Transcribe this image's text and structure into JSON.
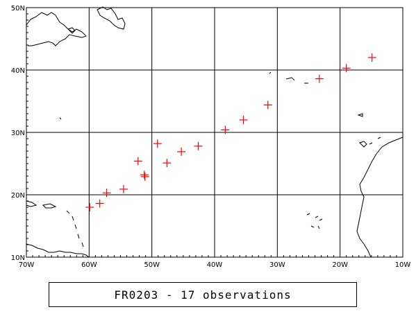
{
  "map": {
    "lon_range": [
      -70,
      -10
    ],
    "lat_range": [
      10,
      50
    ],
    "lon_ticks": [
      {
        "value": -70,
        "label": "70W"
      },
      {
        "value": -60,
        "label": "60W"
      },
      {
        "value": -50,
        "label": "50W"
      },
      {
        "value": -40,
        "label": "40W"
      },
      {
        "value": -30,
        "label": "30W"
      },
      {
        "value": -20,
        "label": "20W"
      },
      {
        "value": -10,
        "label": "10W"
      }
    ],
    "lat_ticks": [
      {
        "value": 10,
        "label": "10N"
      },
      {
        "value": 20,
        "label": "20N"
      },
      {
        "value": 30,
        "label": "30N"
      },
      {
        "value": 40,
        "label": "40N"
      },
      {
        "value": 50,
        "label": "50N"
      }
    ],
    "grid": true,
    "marker_color": "#ff0000",
    "coast_color": "#000000",
    "observations": [
      {
        "lon": -59.9,
        "lat": 18.0
      },
      {
        "lon": -58.3,
        "lat": 18.6
      },
      {
        "lon": -57.2,
        "lat": 20.3
      },
      {
        "lon": -54.5,
        "lat": 20.9
      },
      {
        "lon": -52.2,
        "lat": 25.4
      },
      {
        "lon": -51.2,
        "lat": 23.2
      },
      {
        "lon": -51.1,
        "lat": 22.9
      },
      {
        "lon": -49.1,
        "lat": 28.2
      },
      {
        "lon": -47.6,
        "lat": 25.1
      },
      {
        "lon": -45.3,
        "lat": 26.9
      },
      {
        "lon": -42.6,
        "lat": 27.8
      },
      {
        "lon": -38.3,
        "lat": 30.4
      },
      {
        "lon": -35.4,
        "lat": 32.0
      },
      {
        "lon": -31.5,
        "lat": 34.4
      },
      {
        "lon": -23.3,
        "lat": 38.6
      },
      {
        "lon": -19.0,
        "lat": 40.3
      },
      {
        "lon": -14.9,
        "lat": 42.0
      }
    ]
  },
  "caption": {
    "text": "FR0203 - 17 observations"
  }
}
